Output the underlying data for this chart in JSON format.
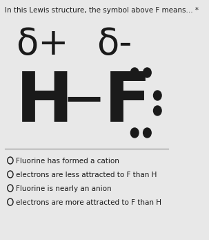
{
  "title": "In this Lewis structure, the symbol above F means... *",
  "title_fontsize": 7.5,
  "bg_color": "#e8e8e8",
  "delta_plus": "δ+",
  "delta_minus": "δ-",
  "delta_fontsize": 38,
  "hf_fontsize": 72,
  "h_text": "H",
  "f_text": "F",
  "options": [
    "Fluorine has formed a cation",
    "electrons are less attracted to F than H",
    "Fluorine is nearly an anion",
    "electrons are more attracted to F than H"
  ],
  "option_fontsize": 7.5,
  "dot_color": "#1a1a1a",
  "text_color": "#1a1a1a",
  "line_color": "#888888"
}
